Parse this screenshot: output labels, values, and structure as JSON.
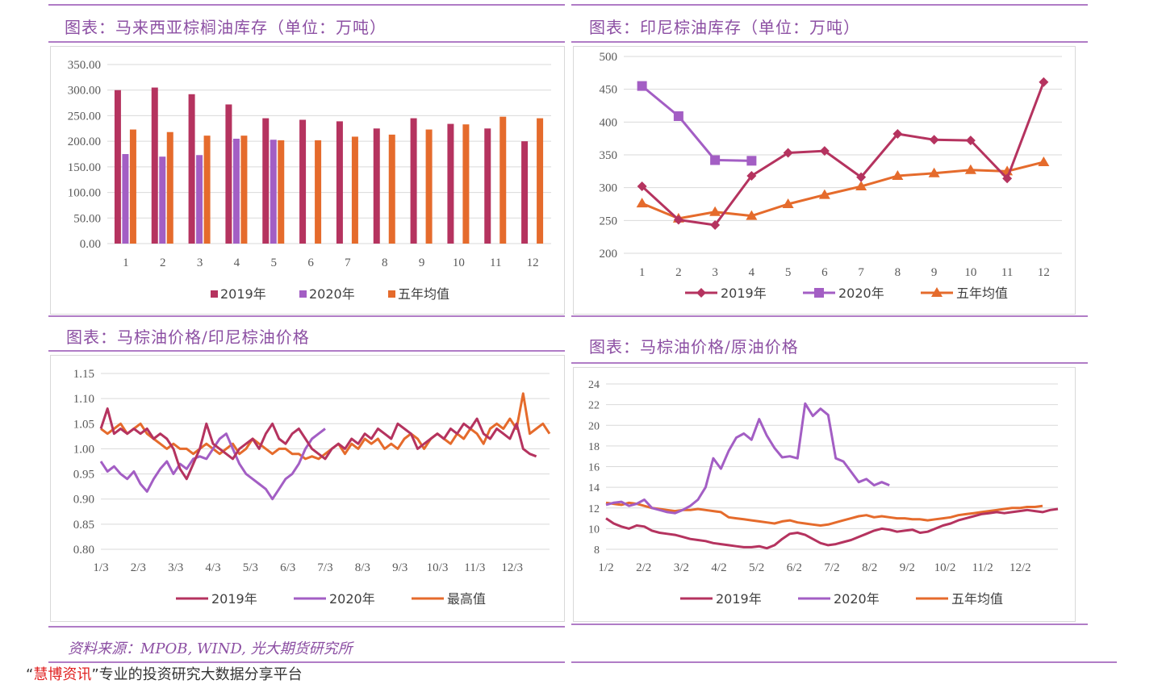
{
  "titles": {
    "c1": "图表：马来西亚棕榈油库存（单位：万吨）",
    "c2": "图表：印尼棕油库存（单位：万吨）",
    "c3": "图表：马棕油价格/印尼棕油价格",
    "c4": "图表：马棕油价格/原油价格"
  },
  "source": "资料来源：MPOB, WIND, 光大期货研究所",
  "footer": {
    "q1": "“",
    "brand": "慧博资讯",
    "rest": "”专业的投资研究大数据分享平台"
  },
  "colors": {
    "s2019": "#b5335f",
    "s2020": "#a35ec4",
    "s3": "#e56b2c",
    "accent": "#8c4fa3"
  },
  "chart_data": [
    {
      "type": "bar",
      "categories": [
        "1",
        "2",
        "3",
        "4",
        "5",
        "6",
        "7",
        "8",
        "9",
        "10",
        "11",
        "12"
      ],
      "series": [
        {
          "name": "2019年",
          "values": [
            300,
            305,
            292,
            272,
            245,
            242,
            239,
            225,
            245,
            234,
            225,
            200
          ]
        },
        {
          "name": "2020年",
          "values": [
            175,
            170,
            173,
            205,
            203,
            null,
            null,
            null,
            null,
            null,
            null,
            null
          ]
        },
        {
          "name": "五年均值",
          "values": [
            223,
            218,
            211,
            211,
            202,
            202,
            209,
            213,
            223,
            233,
            248,
            245
          ]
        }
      ],
      "yticks": [
        "350.00",
        "300.00",
        "250.00",
        "200.00",
        "150.00",
        "100.00",
        "50.00",
        "0.00"
      ],
      "ylim": [
        0,
        350
      ],
      "legend": "bottom"
    },
    {
      "type": "line",
      "categories": [
        "1",
        "2",
        "3",
        "4",
        "5",
        "6",
        "7",
        "8",
        "9",
        "10",
        "11",
        "12"
      ],
      "series": [
        {
          "name": "2019年",
          "marker": "diamond",
          "values": [
            302,
            251,
            243,
            318,
            353,
            356,
            316,
            382,
            373,
            372,
            314,
            461
          ]
        },
        {
          "name": "2020年",
          "marker": "square",
          "values": [
            455,
            409,
            342,
            341,
            null,
            null,
            null,
            null,
            null,
            null,
            null,
            null
          ]
        },
        {
          "name": "五年均值",
          "marker": "triangle",
          "values": [
            276,
            253,
            263,
            257,
            275,
            289,
            302,
            318,
            322,
            327,
            325,
            339
          ]
        }
      ],
      "yticks": [
        "500",
        "450",
        "400",
        "350",
        "300",
        "250",
        "200"
      ],
      "ylim": [
        200,
        500
      ],
      "legend": "bottom"
    },
    {
      "type": "line",
      "xticks": [
        "1/3",
        "2/3",
        "3/3",
        "4/3",
        "5/3",
        "6/3",
        "7/3",
        "8/3",
        "9/3",
        "10/3",
        "11/3",
        "12/3"
      ],
      "series": [
        {
          "name": "2019年",
          "values": [
            1.04,
            1.08,
            1.03,
            1.04,
            1.03,
            1.04,
            1.03,
            1.04,
            1.02,
            1.03,
            1.02,
            1.0,
            0.96,
            0.94,
            0.97,
            1.0,
            1.05,
            1.01,
            1.0,
            0.99,
            0.98,
            1.0,
            1.01,
            1.02,
            1.0,
            1.03,
            1.05,
            1.02,
            1.01,
            1.03,
            1.04,
            1.02,
            1.0,
            0.99,
            0.98,
            1.0,
            1.01,
            1.0,
            1.02,
            1.01,
            1.03,
            1.02,
            1.04,
            1.03,
            1.02,
            1.05,
            1.04,
            1.03,
            1.0,
            1.01,
            1.02,
            1.03,
            1.02,
            1.04,
            1.03,
            1.05,
            1.04,
            1.06,
            1.03,
            1.02,
            1.04,
            1.03,
            1.02,
            1.05,
            1.0,
            0.99,
            0.985
          ]
        },
        {
          "name": "2020年",
          "values": [
            0.975,
            0.955,
            0.965,
            0.95,
            0.94,
            0.955,
            0.93,
            0.915,
            0.94,
            0.96,
            0.975,
            0.95,
            0.97,
            0.96,
            0.98,
            0.985,
            0.98,
            1.0,
            1.02,
            1.03,
            1.0,
            0.97,
            0.95,
            0.94,
            0.93,
            0.92,
            0.9,
            0.92,
            0.94,
            0.95,
            0.97,
            1.0,
            1.02,
            1.03,
            1.04
          ]
        },
        {
          "name": "最高值",
          "values": [
            1.04,
            1.03,
            1.04,
            1.05,
            1.03,
            1.04,
            1.05,
            1.03,
            1.02,
            1.01,
            1.0,
            1.01,
            1.0,
            1.0,
            0.99,
            1.0,
            1.01,
            1.0,
            0.99,
            1.0,
            1.01,
            0.99,
            1.0,
            1.02,
            1.01,
            1.0,
            0.99,
            1.0,
            1.0,
            0.99,
            0.99,
            0.98,
            0.985,
            0.98,
            0.99,
            1.0,
            1.01,
            0.99,
            1.01,
            1.0,
            1.02,
            1.01,
            1.02,
            1.0,
            1.01,
            1.0,
            1.02,
            1.03,
            1.02,
            1.0,
            1.02,
            1.03,
            1.02,
            1.01,
            1.03,
            1.02,
            1.04,
            1.03,
            1.01,
            1.04,
            1.05,
            1.04,
            1.06,
            1.04,
            1.11,
            1.03,
            1.04,
            1.05,
            1.03
          ]
        }
      ],
      "yticks": [
        "1.15",
        "1.10",
        "1.05",
        "1.00",
        "0.95",
        "0.90",
        "0.85",
        "0.80"
      ],
      "ylim": [
        0.8,
        1.15
      ],
      "legend": "bottom"
    },
    {
      "type": "line",
      "xticks": [
        "1/2",
        "2/2",
        "3/2",
        "4/2",
        "5/2",
        "6/2",
        "7/2",
        "8/2",
        "9/2",
        "10/2",
        "11/2",
        "12/2"
      ],
      "series": [
        {
          "name": "2019年",
          "values": [
            11.0,
            10.5,
            10.2,
            10.0,
            10.3,
            10.2,
            9.8,
            9.6,
            9.5,
            9.4,
            9.2,
            9.0,
            8.9,
            8.8,
            8.6,
            8.5,
            8.4,
            8.3,
            8.2,
            8.2,
            8.3,
            8.1,
            8.4,
            9.0,
            9.5,
            9.6,
            9.4,
            9.0,
            8.6,
            8.4,
            8.5,
            8.7,
            8.9,
            9.2,
            9.5,
            9.8,
            10.0,
            9.9,
            9.7,
            9.8,
            9.9,
            9.6,
            9.7,
            10.0,
            10.3,
            10.5,
            10.8,
            11.0,
            11.2,
            11.4,
            11.5,
            11.6,
            11.5,
            11.6,
            11.7,
            11.8,
            11.7,
            11.6,
            11.8,
            11.9
          ]
        },
        {
          "name": "2020年",
          "values": [
            12.3,
            12.5,
            12.6,
            12.2,
            12.4,
            12.8,
            12.0,
            11.8,
            11.6,
            11.5,
            11.8,
            12.2,
            12.8,
            14.0,
            16.8,
            15.8,
            17.5,
            18.8,
            19.2,
            18.6,
            20.6,
            19.0,
            17.8,
            16.9,
            17.0,
            16.8,
            22.1,
            20.9,
            21.6,
            21.0,
            16.8,
            16.5,
            15.5,
            14.5,
            14.8,
            14.2,
            14.5,
            14.2
          ]
        },
        {
          "name": "五年均值",
          "values": [
            12.5,
            12.4,
            12.3,
            12.5,
            12.4,
            12.2,
            12.0,
            11.9,
            11.8,
            11.7,
            11.8,
            11.8,
            11.9,
            11.8,
            11.7,
            11.6,
            11.1,
            11.0,
            10.9,
            10.8,
            10.7,
            10.6,
            10.5,
            10.7,
            10.8,
            10.6,
            10.5,
            10.4,
            10.3,
            10.4,
            10.6,
            10.8,
            11.0,
            11.2,
            11.3,
            11.1,
            11.2,
            11.1,
            11.0,
            11.0,
            10.9,
            10.9,
            10.8,
            10.9,
            11.0,
            11.1,
            11.3,
            11.4,
            11.5,
            11.6,
            11.7,
            11.8,
            11.9,
            12.0,
            12.0,
            12.1,
            12.1,
            12.2
          ]
        }
      ],
      "yticks": [
        "24",
        "22",
        "20",
        "18",
        "16",
        "14",
        "12",
        "10",
        "8"
      ],
      "ylim": [
        8,
        24
      ],
      "legend": "bottom"
    }
  ]
}
